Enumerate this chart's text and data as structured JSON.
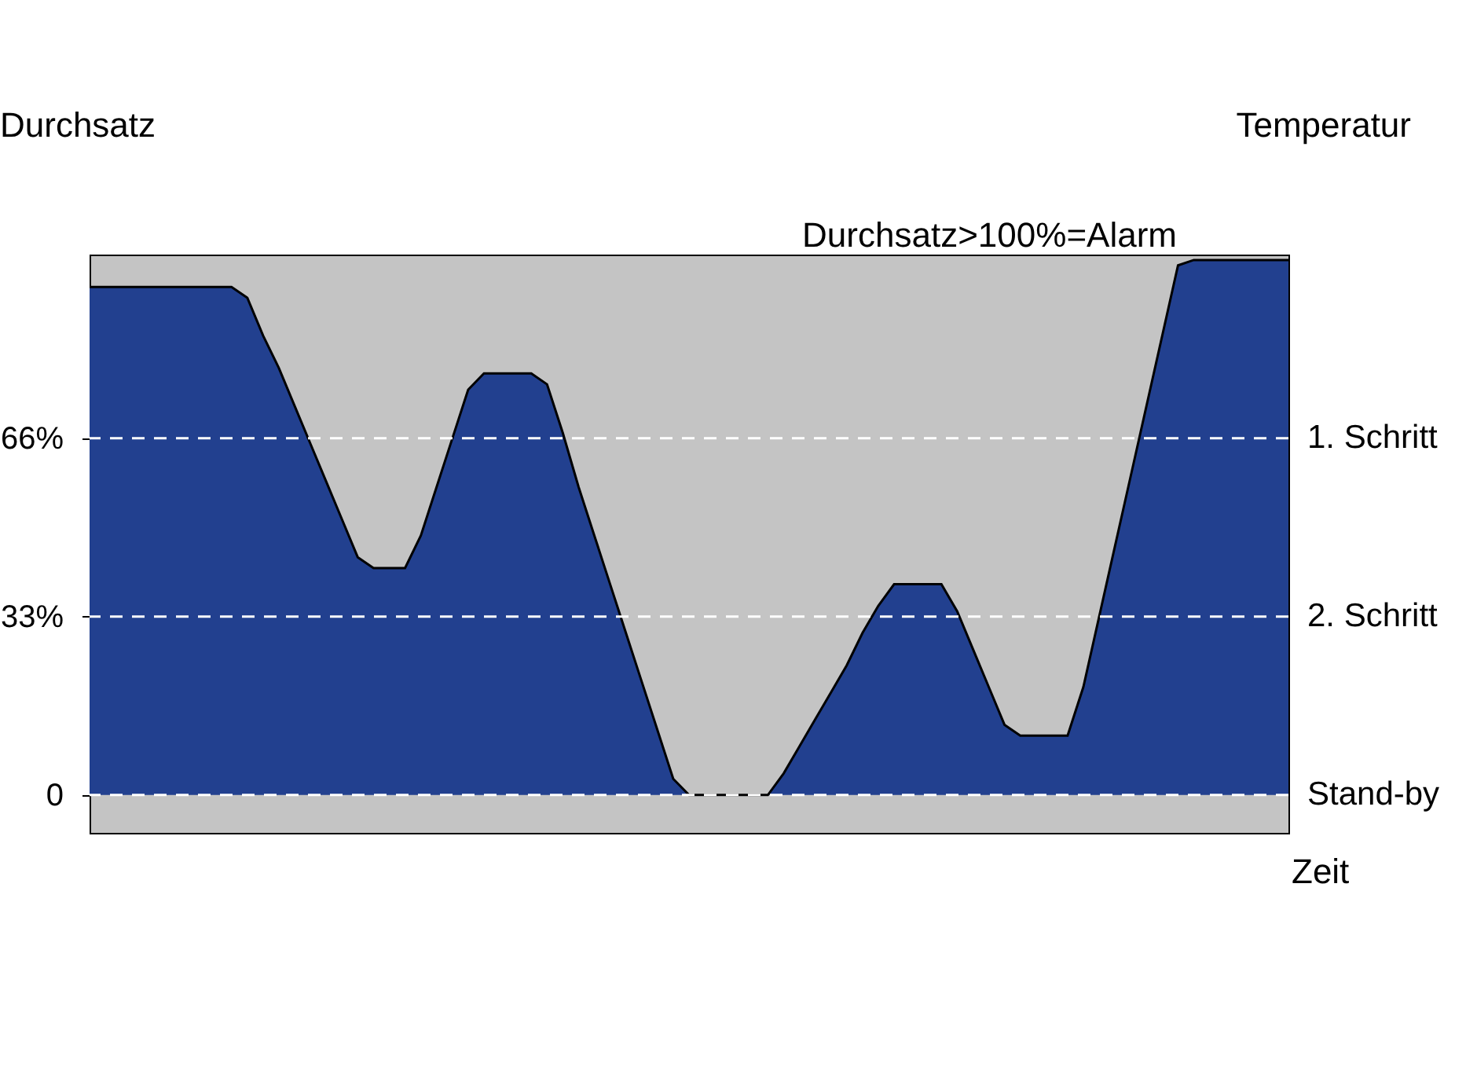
{
  "chart_data": {
    "type": "area",
    "xlabel": "Zeit",
    "ylabel": "Durchsatz",
    "y2label": "Temperatur",
    "categories": [
      null,
      null,
      null,
      null,
      null,
      null,
      null,
      null,
      null,
      null,
      null,
      null,
      null,
      null,
      null,
      null,
      null,
      null,
      null,
      null,
      null,
      null,
      null,
      null,
      null,
      null,
      null,
      null,
      null,
      null,
      null,
      null,
      null,
      null,
      null,
      null,
      null,
      null,
      null,
      null,
      null,
      null,
      null,
      null,
      null,
      null,
      null,
      null,
      null,
      null,
      null,
      null,
      null,
      null,
      null,
      null,
      null,
      null,
      null,
      null,
      null,
      null,
      null,
      null,
      null,
      null,
      null,
      null,
      null,
      null,
      null,
      null,
      null,
      null,
      null,
      null,
      null
    ],
    "series": [
      {
        "color": "#22408f",
        "values": [
          94,
          94,
          94,
          94,
          94,
          94,
          94,
          94,
          94,
          94,
          92,
          85,
          79,
          72,
          65,
          58,
          51,
          44,
          42,
          42,
          42,
          48,
          57,
          66,
          75,
          78,
          78,
          78,
          78,
          76,
          67,
          57,
          48,
          39,
          30,
          21,
          12,
          3,
          0,
          0,
          0,
          0,
          0,
          0,
          4,
          9,
          14,
          19,
          24,
          30,
          35,
          39,
          39,
          39,
          39,
          34,
          27,
          20,
          13,
          11,
          11,
          11,
          11,
          20,
          33,
          46,
          59,
          72,
          85,
          98,
          99,
          99,
          99,
          99,
          99,
          99,
          99
        ]
      }
    ],
    "ylim": [
      -7,
      100
    ],
    "yticks": [
      {
        "value": 0,
        "label": "0"
      },
      {
        "value": 33,
        "label": "33%"
      },
      {
        "value": 66,
        "label": "66%"
      }
    ],
    "tick_labels": "y",
    "ref_lines": [
      {
        "axis": "y",
        "value": 66,
        "label": "1. Schritt",
        "color": "#ffffff",
        "line_style": "dashed"
      },
      {
        "axis": "y",
        "value": 33,
        "label": "2. Schritt",
        "color": "#ffffff",
        "line_style": "dashed"
      },
      {
        "axis": "y",
        "value": 0,
        "label": "Stand-by",
        "color": "#ffffff",
        "line_style": "dashed"
      }
    ],
    "annotations": [
      "Durchsatz>100%=Alarm"
    ]
  }
}
